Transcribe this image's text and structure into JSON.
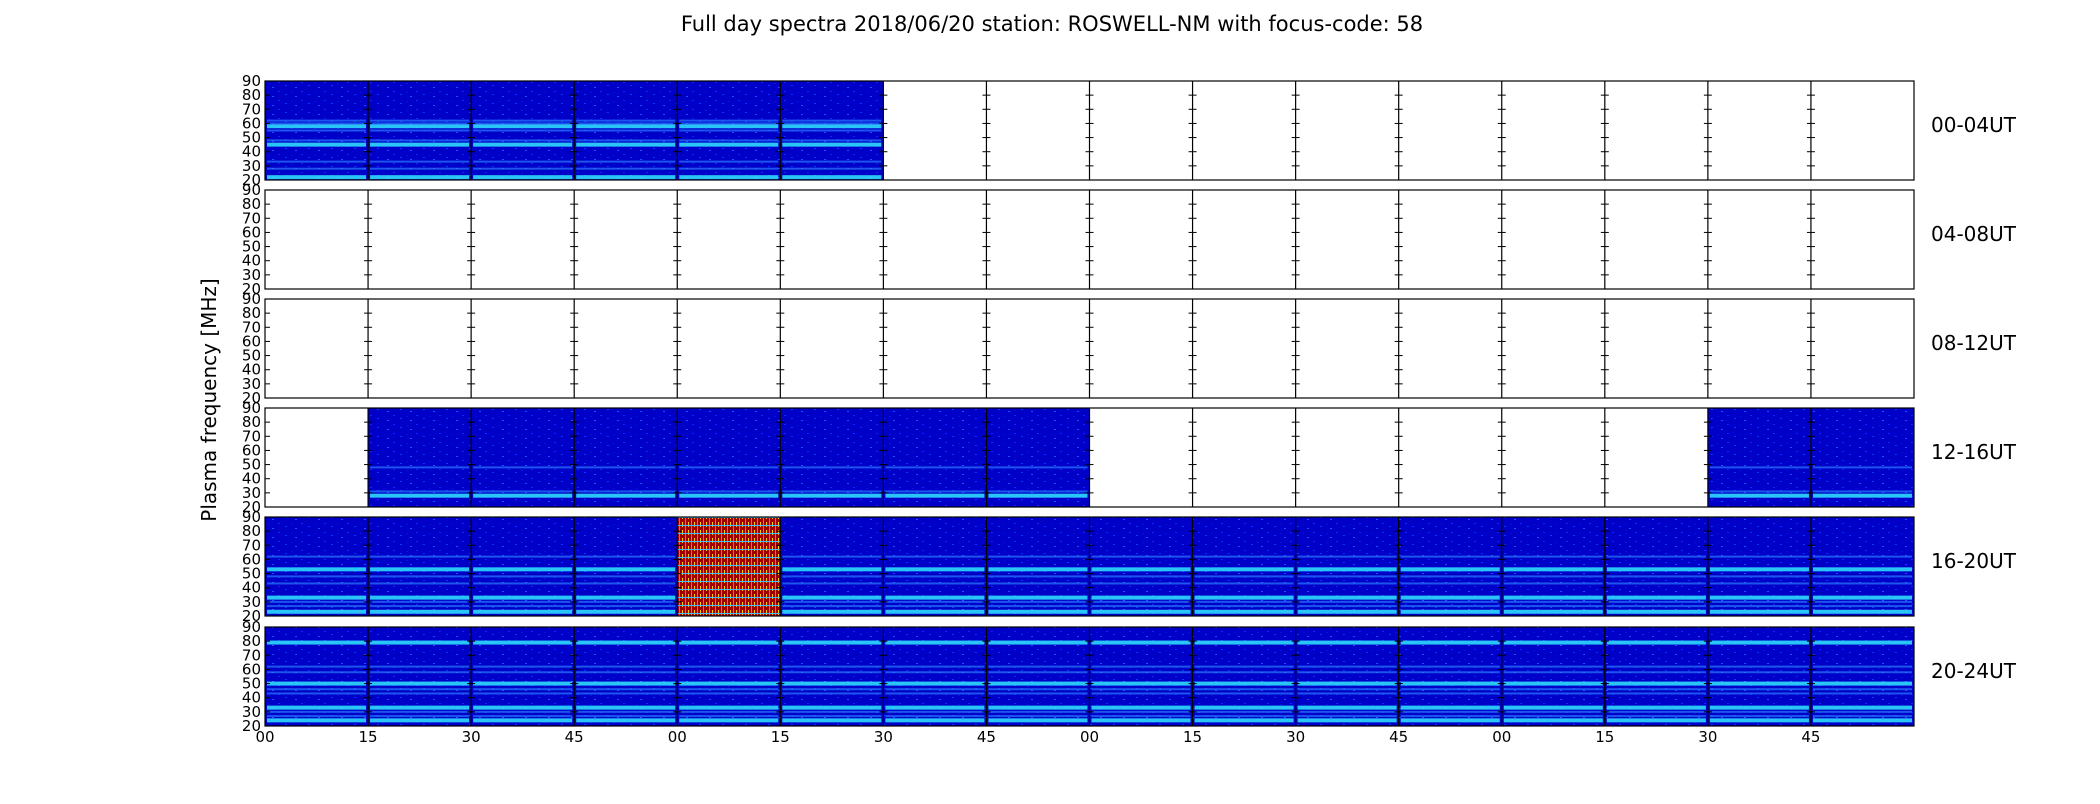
{
  "chart_data": {
    "type": "heatmap",
    "title": "Full day spectra 2018/06/20 station: ROSWELL-NM with focus-code: 58",
    "ylabel": "Plasma frequency [MHz]",
    "xlabel": "",
    "ylim": [
      20,
      90
    ],
    "y_ticks": [
      "20",
      "30",
      "40",
      "50",
      "60",
      "70",
      "80",
      "90"
    ],
    "x_tick_labels": [
      "00",
      "15",
      "30",
      "45",
      "00",
      "15",
      "30",
      "45",
      "00",
      "15",
      "30",
      "45",
      "00",
      "15",
      "30",
      "45"
    ],
    "segment_minutes": 15,
    "segments_per_row": 16,
    "colormap": [
      "#00007f",
      "#0000ff",
      "#00ffff",
      "#ffff00",
      "#ff0000",
      "#7f0000"
    ],
    "rows": [
      {
        "label": "00-04UT",
        "data_segments": [
          1,
          1,
          1,
          1,
          1,
          1,
          0,
          0,
          0,
          0,
          0,
          0,
          0,
          0,
          0,
          0
        ],
        "high_activity_segments": [],
        "band_frequencies": [
          22,
          28,
          33,
          45,
          48,
          55,
          58,
          60,
          62
        ]
      },
      {
        "label": "04-08UT",
        "data_segments": [
          0,
          0,
          0,
          0,
          0,
          0,
          0,
          0,
          0,
          0,
          0,
          0,
          0,
          0,
          0,
          0
        ],
        "high_activity_segments": [],
        "band_frequencies": []
      },
      {
        "label": "08-12UT",
        "data_segments": [
          0,
          0,
          0,
          0,
          0,
          0,
          0,
          0,
          0,
          0,
          0,
          0,
          0,
          0,
          0,
          0
        ],
        "high_activity_segments": [],
        "band_frequencies": []
      },
      {
        "label": "12-16UT",
        "data_segments": [
          0,
          1,
          1,
          1,
          1,
          1,
          1,
          1,
          0,
          0,
          0,
          0,
          0,
          0,
          1,
          1
        ],
        "high_activity_segments": [],
        "band_frequencies": [
          28,
          31,
          48
        ]
      },
      {
        "label": "16-20UT",
        "data_segments": [
          1,
          1,
          1,
          1,
          1,
          1,
          1,
          1,
          1,
          1,
          1,
          1,
          1,
          1,
          1,
          1
        ],
        "high_activity_segments": [
          4
        ],
        "band_frequencies": [
          23,
          27,
          30,
          33,
          43,
          48,
          53,
          62
        ]
      },
      {
        "label": "20-24UT",
        "data_segments": [
          1,
          1,
          1,
          1,
          1,
          1,
          1,
          1,
          1,
          1,
          1,
          1,
          1,
          1,
          1,
          1
        ],
        "high_activity_segments": [],
        "band_frequencies": [
          24,
          27,
          30,
          33,
          43,
          46,
          50,
          58,
          62,
          79
        ]
      }
    ]
  }
}
